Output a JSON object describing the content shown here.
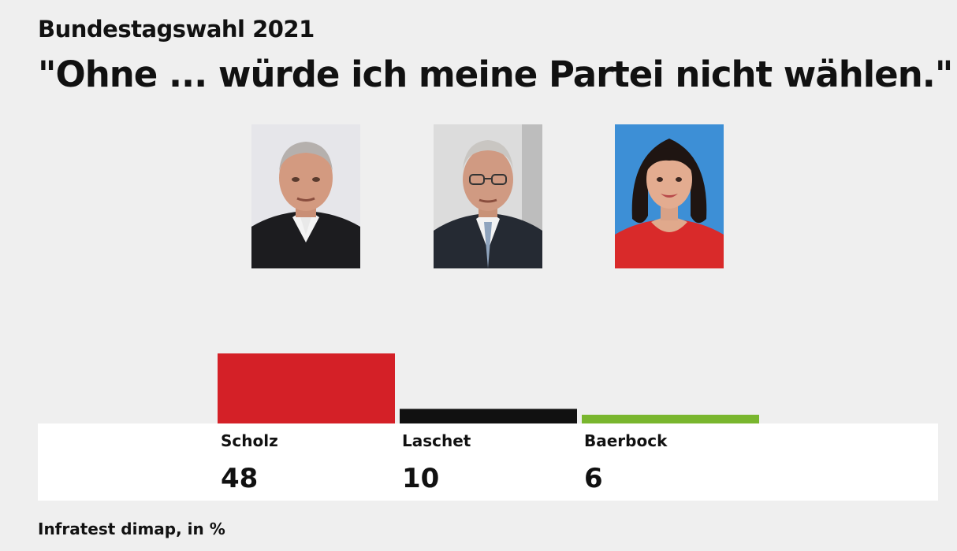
{
  "header": {
    "kicker": "Bundestagswahl 2021",
    "title": "\"Ohne ... würde ich meine Partei nicht wählen.\""
  },
  "portraits": [
    {
      "name": "Scholz",
      "bg_color": "#e6e6ea"
    },
    {
      "name": "Laschet",
      "bg_color": "#dcdcdc"
    },
    {
      "name": "Baerbock",
      "bg_color": "#3d8fd6"
    }
  ],
  "chart_data": {
    "type": "bar",
    "title": "\"Ohne ... würde ich meine Partei nicht wählen.\"",
    "categories": [
      "Scholz",
      "Laschet",
      "Baerbock"
    ],
    "values": [
      48,
      10,
      6
    ],
    "value_labels": [
      "48",
      "10",
      "6"
    ],
    "colors": [
      "#d42027",
      "#111111",
      "#79b62e"
    ],
    "ylim": [
      0,
      48
    ],
    "xlabel": "",
    "ylabel": "",
    "unit": "%",
    "grid": false
  },
  "footer": {
    "source": "Infratest dimap, in %"
  }
}
